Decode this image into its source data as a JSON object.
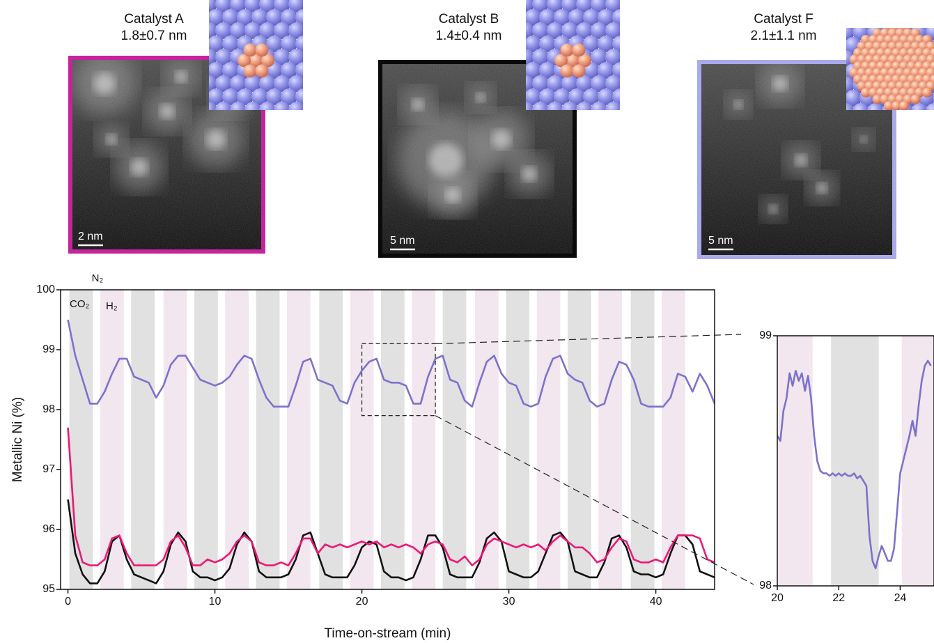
{
  "panels": [
    {
      "title": "Catalyst A",
      "size": "1.8±0.7 nm",
      "scale_bar": "2 nm",
      "frame_color": "#c4249c"
    },
    {
      "title": "Catalyst B",
      "size": "1.4±0.4 nm",
      "scale_bar": "5 nm",
      "frame_color": "#0a0a0a"
    },
    {
      "title": "Catalyst F",
      "size": "2.1±1.1 nm",
      "scale_bar": "5 nm",
      "frame_color": "#aaa9ea"
    }
  ],
  "chart_data": [
    {
      "type": "line",
      "x_label": "Time-on-stream (min)",
      "y_label": "Metallic Ni (%)",
      "annotations": [
        "CO₂",
        "N₂",
        "H₂"
      ],
      "xlim": [
        -0.5,
        44
      ],
      "ylim": [
        95,
        100
      ],
      "xticks": [
        0,
        10,
        20,
        30,
        40
      ],
      "yticks": [
        95,
        96,
        97,
        98,
        99,
        100
      ],
      "bands": [
        {
          "start": 0.1,
          "end": 1.7,
          "color": "#e1e1e1"
        },
        {
          "start": 2.2,
          "end": 3.8,
          "color": "#f2e6ef"
        },
        {
          "start": 4.3,
          "end": 5.9,
          "color": "#e1e1e1"
        },
        {
          "start": 6.5,
          "end": 8.1,
          "color": "#f2e6ef"
        },
        {
          "start": 8.6,
          "end": 10.2,
          "color": "#e1e1e1"
        },
        {
          "start": 10.7,
          "end": 12.3,
          "color": "#f2e6ef"
        },
        {
          "start": 12.8,
          "end": 14.4,
          "color": "#e1e1e1"
        },
        {
          "start": 14.9,
          "end": 16.5,
          "color": "#f2e6ef"
        },
        {
          "start": 17.1,
          "end": 18.7,
          "color": "#e1e1e1"
        },
        {
          "start": 19.2,
          "end": 20.8,
          "color": "#f2e6ef"
        },
        {
          "start": 21.3,
          "end": 22.9,
          "color": "#e1e1e1"
        },
        {
          "start": 23.4,
          "end": 25.0,
          "color": "#f2e6ef"
        },
        {
          "start": 25.5,
          "end": 27.1,
          "color": "#e1e1e1"
        },
        {
          "start": 27.7,
          "end": 29.3,
          "color": "#f2e6ef"
        },
        {
          "start": 29.8,
          "end": 31.4,
          "color": "#e1e1e1"
        },
        {
          "start": 31.9,
          "end": 33.5,
          "color": "#f2e6ef"
        },
        {
          "start": 34.0,
          "end": 35.6,
          "color": "#e1e1e1"
        },
        {
          "start": 36.1,
          "end": 37.7,
          "color": "#f2e6ef"
        },
        {
          "start": 38.3,
          "end": 39.9,
          "color": "#e1e1e1"
        },
        {
          "start": 40.4,
          "end": 42.0,
          "color": "#f2e6ef"
        }
      ],
      "x": [
        0,
        0.5,
        1,
        1.5,
        2,
        2.5,
        3,
        3.5,
        4,
        4.5,
        5,
        5.5,
        6,
        6.5,
        7,
        7.5,
        8,
        8.5,
        9,
        9.5,
        10,
        10.5,
        11,
        11.5,
        12,
        12.5,
        13,
        13.5,
        14,
        14.5,
        15,
        15.5,
        16,
        16.5,
        17,
        17.5,
        18,
        18.5,
        19,
        19.5,
        20,
        20.5,
        21,
        21.5,
        22,
        22.5,
        23,
        23.5,
        24,
        24.5,
        25,
        25.5,
        26,
        26.5,
        27,
        27.5,
        28,
        28.5,
        29,
        29.5,
        30,
        30.5,
        31,
        31.5,
        32,
        32.5,
        33,
        33.5,
        34,
        34.5,
        35,
        35.5,
        36,
        36.5,
        37,
        37.5,
        38,
        38.5,
        39,
        39.5,
        40,
        40.5,
        41,
        41.5,
        42,
        42.5,
        43,
        43.5,
        44
      ],
      "series": [
        {
          "color": "#7b72cc",
          "values": [
            99.5,
            98.9,
            98.5,
            98.1,
            98.1,
            98.3,
            98.6,
            98.85,
            98.85,
            98.55,
            98.5,
            98.45,
            98.2,
            98.4,
            98.75,
            98.9,
            98.9,
            98.7,
            98.5,
            98.45,
            98.4,
            98.45,
            98.55,
            98.75,
            98.9,
            98.85,
            98.5,
            98.2,
            98.05,
            98.05,
            98.05,
            98.4,
            98.8,
            98.85,
            98.5,
            98.45,
            98.4,
            98.15,
            98.1,
            98.45,
            98.65,
            98.8,
            98.85,
            98.5,
            98.45,
            98.45,
            98.4,
            98.1,
            98.1,
            98.55,
            98.85,
            98.9,
            98.5,
            98.45,
            98.15,
            98.05,
            98.45,
            98.8,
            98.9,
            98.6,
            98.45,
            98.4,
            98.1,
            98.05,
            98.1,
            98.55,
            98.85,
            98.9,
            98.6,
            98.5,
            98.45,
            98.15,
            98.05,
            98.1,
            98.5,
            98.8,
            98.75,
            98.5,
            98.1,
            98.05,
            98.05,
            98.05,
            98.2,
            98.6,
            98.55,
            98.3,
            98.6,
            98.4,
            98.1
          ]
        },
        {
          "color": "#111111",
          "values": [
            96.5,
            95.6,
            95.25,
            95.1,
            95.1,
            95.3,
            95.8,
            95.9,
            95.5,
            95.25,
            95.2,
            95.15,
            95.1,
            95.3,
            95.75,
            95.95,
            95.8,
            95.3,
            95.2,
            95.2,
            95.15,
            95.2,
            95.35,
            95.75,
            95.95,
            95.8,
            95.3,
            95.2,
            95.2,
            95.2,
            95.25,
            95.5,
            95.9,
            95.95,
            95.6,
            95.25,
            95.2,
            95.2,
            95.2,
            95.4,
            95.7,
            95.8,
            95.75,
            95.3,
            95.2,
            95.2,
            95.15,
            95.2,
            95.5,
            95.9,
            95.9,
            95.7,
            95.25,
            95.2,
            95.2,
            95.2,
            95.45,
            95.85,
            95.95,
            95.8,
            95.3,
            95.25,
            95.2,
            95.2,
            95.3,
            95.6,
            95.9,
            95.95,
            95.8,
            95.3,
            95.25,
            95.2,
            95.2,
            95.45,
            95.85,
            95.9,
            95.7,
            95.3,
            95.25,
            95.25,
            95.2,
            95.25,
            95.6,
            95.9,
            95.9,
            95.75,
            95.3,
            95.25,
            95.2
          ]
        },
        {
          "color": "#ec1874",
          "values": [
            97.7,
            95.9,
            95.45,
            95.4,
            95.4,
            95.5,
            95.85,
            95.9,
            95.6,
            95.4,
            95.4,
            95.4,
            95.4,
            95.5,
            95.8,
            95.9,
            95.7,
            95.4,
            95.4,
            95.5,
            95.45,
            95.5,
            95.6,
            95.8,
            95.9,
            95.8,
            95.45,
            95.4,
            95.4,
            95.45,
            95.4,
            95.6,
            95.85,
            95.85,
            95.6,
            95.75,
            95.7,
            95.75,
            95.7,
            95.75,
            95.8,
            95.75,
            95.8,
            95.7,
            95.75,
            95.7,
            95.75,
            95.7,
            95.6,
            95.75,
            95.8,
            95.75,
            95.5,
            95.45,
            95.55,
            95.4,
            95.5,
            95.75,
            95.85,
            95.8,
            95.75,
            95.7,
            95.75,
            95.7,
            95.75,
            95.65,
            95.8,
            95.9,
            95.8,
            95.7,
            95.7,
            95.6,
            95.45,
            95.5,
            95.7,
            95.85,
            95.8,
            95.5,
            95.45,
            95.45,
            95.5,
            95.45,
            95.7,
            95.9,
            95.9,
            95.9,
            95.85,
            95.5,
            95.45
          ]
        }
      ],
      "zoom": {
        "xlim": [
          20,
          25
        ],
        "ylim": [
          97.9,
          99.1
        ]
      }
    },
    {
      "type": "line",
      "xlim": [
        20,
        25.1
      ],
      "ylim": [
        98,
        99
      ],
      "xticks": [
        20,
        22,
        24
      ],
      "yticks": [
        98,
        99
      ],
      "bands": [
        {
          "start": 19.5,
          "end": 21.15,
          "color": "#f2e6ef"
        },
        {
          "start": 21.75,
          "end": 23.3,
          "color": "#e1e1e1"
        },
        {
          "start": 24.05,
          "end": 25.7,
          "color": "#f2e6ef"
        }
      ],
      "x": [
        20,
        20.1,
        20.2,
        20.3,
        20.4,
        20.5,
        20.6,
        20.7,
        20.8,
        20.9,
        21,
        21.1,
        21.2,
        21.3,
        21.4,
        21.5,
        21.6,
        21.7,
        21.8,
        21.9,
        22,
        22.1,
        22.2,
        22.3,
        22.4,
        22.5,
        22.6,
        22.7,
        22.8,
        22.9,
        23,
        23.1,
        23.2,
        23.3,
        23.4,
        23.5,
        23.6,
        23.7,
        23.8,
        23.9,
        24,
        24.1,
        24.2,
        24.3,
        24.4,
        24.5,
        24.6,
        24.7,
        24.8,
        24.9,
        25
      ],
      "series": [
        {
          "color": "#7b72cc",
          "values": [
            98.6,
            98.58,
            98.7,
            98.75,
            98.85,
            98.8,
            98.86,
            98.82,
            98.85,
            98.78,
            98.84,
            98.75,
            98.6,
            98.5,
            98.46,
            98.45,
            98.45,
            98.44,
            98.45,
            98.44,
            98.45,
            98.44,
            98.45,
            98.44,
            98.44,
            98.45,
            98.43,
            98.44,
            98.42,
            98.4,
            98.2,
            98.1,
            98.07,
            98.12,
            98.16,
            98.13,
            98.1,
            98.1,
            98.15,
            98.3,
            98.45,
            98.5,
            98.55,
            98.6,
            98.66,
            98.6,
            98.72,
            98.82,
            98.88,
            98.9,
            98.88
          ]
        }
      ]
    }
  ]
}
